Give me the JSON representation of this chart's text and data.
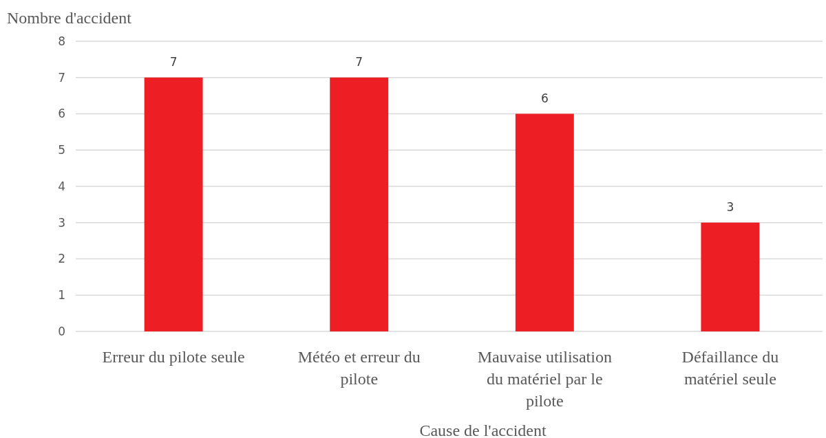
{
  "chart_data": {
    "type": "bar",
    "ylabel": "Nombre d'accident",
    "xlabel": "Cause de l'accident",
    "categories": [
      "Erreur du pilote seule",
      "Météo et erreur du pilote",
      "Mauvaise utilisation du matériel par le pilote",
      "Défaillance du matériel seule"
    ],
    "values": [
      7,
      7,
      6,
      3
    ],
    "color": "#ee1f24",
    "ylim": [
      0,
      8
    ],
    "yticks": [
      0,
      1,
      2,
      3,
      4,
      5,
      6,
      7,
      8
    ],
    "grid": "y",
    "data_labels": true
  }
}
